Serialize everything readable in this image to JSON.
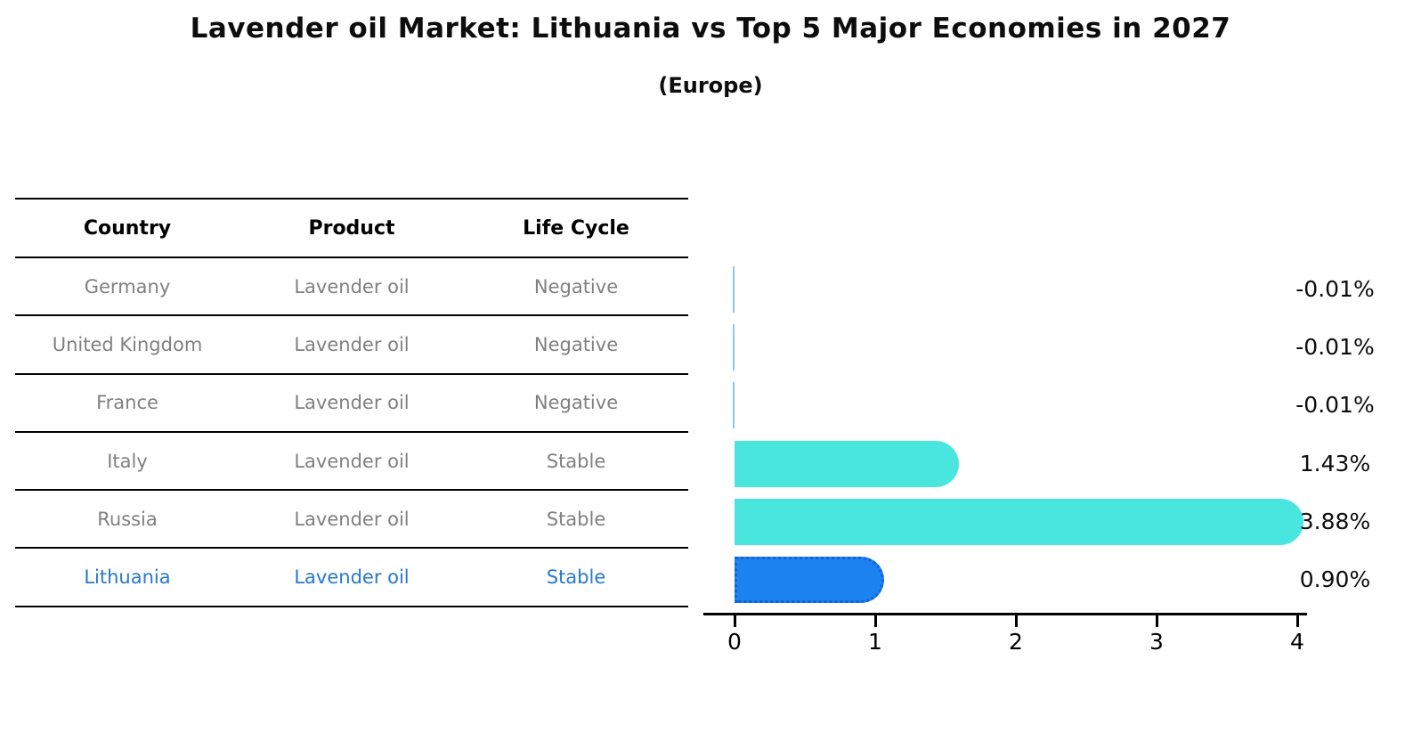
{
  "title": "Lavender oil Market: Lithuania vs Top 5 Major Economies in 2027",
  "subtitle": "(Europe)",
  "table": {
    "headers": [
      "Country",
      "Product",
      "Life Cycle"
    ],
    "rows": [
      {
        "country": "Germany",
        "product": "Lavender oil",
        "life_cycle": "Negative",
        "highlight": false
      },
      {
        "country": "United Kingdom",
        "product": "Lavender oil",
        "life_cycle": "Negative",
        "highlight": false
      },
      {
        "country": "France",
        "product": "Lavender oil",
        "life_cycle": "Negative",
        "highlight": false
      },
      {
        "country": "Italy",
        "product": "Lavender oil",
        "life_cycle": "Stable",
        "highlight": false
      },
      {
        "country": "Russia",
        "product": "Lavender oil",
        "life_cycle": "Stable",
        "highlight": false
      },
      {
        "country": "Lithuania",
        "product": "Lavender oil",
        "life_cycle": "Stable",
        "highlight": true
      }
    ]
  },
  "chart_data": {
    "type": "bar",
    "orientation": "horizontal",
    "title": "Lavender oil Market: Lithuania vs Top 5 Major Economies in 2027",
    "subtitle": "(Europe)",
    "categories": [
      "Germany",
      "United Kingdom",
      "France",
      "Italy",
      "Russia",
      "Lithuania"
    ],
    "values": [
      -0.01,
      -0.01,
      -0.01,
      1.43,
      3.88,
      0.9
    ],
    "value_labels": [
      "-0.01%",
      "-0.01%",
      "-0.01%",
      "1.43%",
      "3.88%",
      "0.90%"
    ],
    "xticks": [
      "0",
      "1",
      "2",
      "3",
      "4"
    ],
    "xtick_values": [
      0,
      1,
      2,
      3,
      4
    ],
    "xlim": [
      -0.22,
      4.07
    ],
    "grid": false,
    "legend": false,
    "highlight_index": 5
  },
  "colors": {
    "positive_bar": "#48E6DF",
    "negative_bar": "#8CC9E8",
    "highlight_bar": "#1B82F0",
    "highlight_bar_edge": "#1163D6",
    "highlight_text": "#2878CC",
    "table_text": "#808080",
    "header_text": "#000000",
    "axis": "#000000"
  }
}
